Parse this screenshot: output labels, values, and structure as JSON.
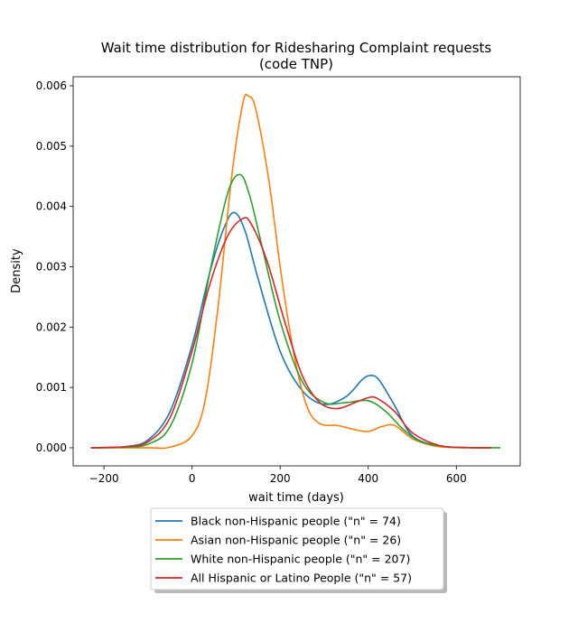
{
  "chart_data": {
    "type": "line",
    "title_line1": "Wait time distribution  for Ridesharing Complaint requests",
    "title_line2": "(code TNP)",
    "xlabel": "wait time (days)",
    "ylabel": "Density",
    "xlim": [
      -270,
      745
    ],
    "ylim": [
      -0.0003,
      0.00615
    ],
    "x_ticks": [
      -200,
      0,
      200,
      400,
      600
    ],
    "x_tick_labels": [
      "−200",
      "0",
      "200",
      "400",
      "600"
    ],
    "y_ticks": [
      0,
      0.001,
      0.002,
      0.003,
      0.004,
      0.005,
      0.006
    ],
    "y_tick_labels": [
      "0.000",
      "0.001",
      "0.002",
      "0.003",
      "0.004",
      "0.005",
      "0.006"
    ],
    "grid": false,
    "legend_position": "below plot, centered",
    "series": [
      {
        "name": "Black non-Hispanic people (\"n\" = 74)",
        "color": "#1f77b4",
        "points": [
          [
            -230,
            0
          ],
          [
            -150,
            2e-05
          ],
          [
            -100,
            0.00013
          ],
          [
            -50,
            0.0006
          ],
          [
            0,
            0.0017
          ],
          [
            40,
            0.0029
          ],
          [
            70,
            0.0036
          ],
          [
            95,
            0.0039
          ],
          [
            120,
            0.0036
          ],
          [
            150,
            0.0028
          ],
          [
            200,
            0.0016
          ],
          [
            250,
            0.00095
          ],
          [
            300,
            0.00072
          ],
          [
            350,
            0.00085
          ],
          [
            385,
            0.00112
          ],
          [
            405,
            0.0012
          ],
          [
            425,
            0.00112
          ],
          [
            460,
            0.0007
          ],
          [
            500,
            0.0002
          ],
          [
            560,
            3e-05
          ],
          [
            620,
            5e-06
          ],
          [
            670,
            0
          ]
        ]
      },
      {
        "name": "Asian non-Hispanic people (\"n\" = 26)",
        "color": "#ff7f0e",
        "points": [
          [
            -220,
            0
          ],
          [
            -100,
            0
          ],
          [
            -50,
            1e-05
          ],
          [
            0,
            0.0002
          ],
          [
            30,
            0.0008
          ],
          [
            60,
            0.0024
          ],
          [
            90,
            0.0045
          ],
          [
            115,
            0.0057
          ],
          [
            128,
            0.00583
          ],
          [
            145,
            0.0056
          ],
          [
            175,
            0.0044
          ],
          [
            200,
            0.003
          ],
          [
            230,
            0.0016
          ],
          [
            260,
            0.0007
          ],
          [
            290,
            0.0004
          ],
          [
            330,
            0.00037
          ],
          [
            370,
            0.0003
          ],
          [
            400,
            0.00027
          ],
          [
            430,
            0.00035
          ],
          [
            460,
            0.00037
          ],
          [
            500,
            0.00015
          ],
          [
            550,
            3e-05
          ],
          [
            600,
            3e-06
          ],
          [
            660,
            0
          ]
        ]
      },
      {
        "name": "White non-Hispanic people (\"n\" = 207)",
        "color": "#2ca02c",
        "points": [
          [
            -230,
            0
          ],
          [
            -150,
            1e-05
          ],
          [
            -100,
            6e-05
          ],
          [
            -50,
            0.00035
          ],
          [
            0,
            0.0014
          ],
          [
            40,
            0.0029
          ],
          [
            80,
            0.0042
          ],
          [
            108,
            0.00453
          ],
          [
            130,
            0.0042
          ],
          [
            160,
            0.0033
          ],
          [
            200,
            0.0021
          ],
          [
            250,
            0.0011
          ],
          [
            300,
            0.00075
          ],
          [
            350,
            0.00075
          ],
          [
            400,
            0.00078
          ],
          [
            440,
            0.0006
          ],
          [
            480,
            0.0003
          ],
          [
            520,
            0.0001
          ],
          [
            580,
            1.5e-05
          ],
          [
            640,
            2e-06
          ],
          [
            700,
            0
          ]
        ]
      },
      {
        "name": "All Hispanic or Latino People (\"n\" = 57)",
        "color": "#d62728",
        "points": [
          [
            -230,
            0
          ],
          [
            -150,
            2e-05
          ],
          [
            -100,
            0.0001
          ],
          [
            -50,
            0.0005
          ],
          [
            0,
            0.0016
          ],
          [
            40,
            0.0027
          ],
          [
            80,
            0.0035
          ],
          [
            115,
            0.0038
          ],
          [
            135,
            0.0037
          ],
          [
            170,
            0.0031
          ],
          [
            210,
            0.0021
          ],
          [
            250,
            0.0012
          ],
          [
            290,
            0.00075
          ],
          [
            330,
            0.00065
          ],
          [
            370,
            0.00075
          ],
          [
            400,
            0.00083
          ],
          [
            420,
            0.00082
          ],
          [
            460,
            0.0006
          ],
          [
            500,
            0.00025
          ],
          [
            560,
            4e-05
          ],
          [
            620,
            5e-06
          ],
          [
            680,
            0
          ]
        ]
      }
    ]
  }
}
